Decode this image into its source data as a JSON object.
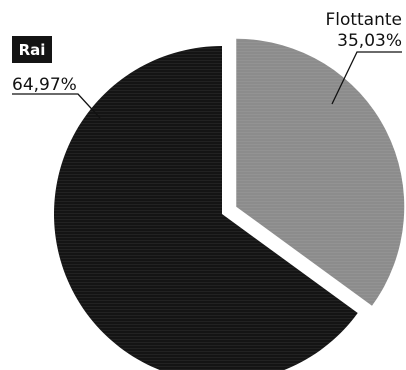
{
  "chart_data": {
    "type": "pie",
    "title": "",
    "slices": [
      {
        "name": "Rai",
        "value": 64.97,
        "label": "64,97%",
        "color": "#141414",
        "logo": true
      },
      {
        "name": "Flottante",
        "value": 35.03,
        "label": "35,03%",
        "color": "#8c8c8c",
        "exploded": true
      }
    ],
    "legend": "none"
  }
}
